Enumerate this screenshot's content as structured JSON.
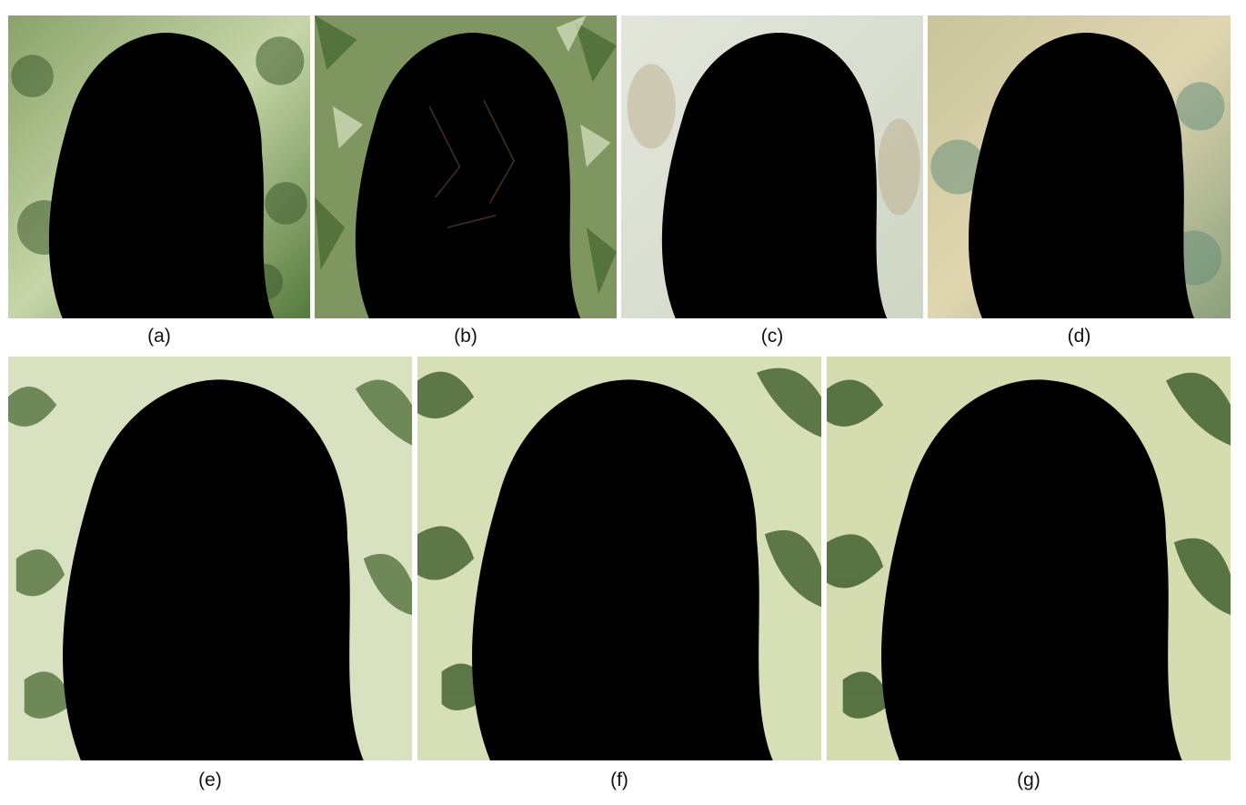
{
  "captions": {
    "a": "(a)",
    "b": "(b)",
    "c": "(c)",
    "d": "(d)",
    "e": "(e)",
    "f": "(f)",
    "g": "(g)"
  },
  "colors": {
    "background": "#ffffff",
    "caption_text": "#111111",
    "foliage_dark": "#3f5a2a",
    "foliage_light": "#c9d9a0",
    "hair_dark": "#2a150c",
    "hair_mid": "#6b3a22",
    "skin": "#e8b48f",
    "lips": "#c2555a"
  }
}
